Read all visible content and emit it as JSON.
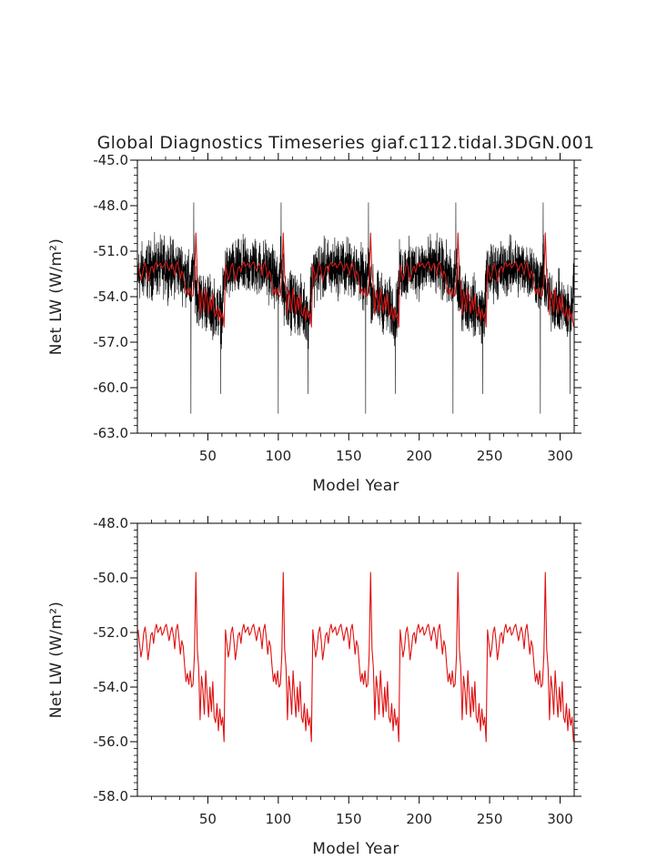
{
  "figure_title": "Global Diagnostics Timeseries giaf.c112.tidal.3DGN.001",
  "chart_data": [
    {
      "type": "line",
      "title": "Global Diagnostics Timeseries giaf.c112.tidal.3DGN.001",
      "xlabel": "Model Year",
      "ylabel": "Net LW (W/m²)",
      "xlim": [
        0,
        310
      ],
      "ylim": [
        -63.0,
        -45.0
      ],
      "x_ticks": [
        50,
        100,
        150,
        200,
        250,
        300
      ],
      "x_tick_labels": [
        "50",
        "100",
        "150",
        "200",
        "250",
        "300"
      ],
      "y_ticks": [
        -63.0,
        -60.0,
        -57.0,
        -54.0,
        -51.0,
        -48.0,
        -45.0
      ],
      "y_tick_labels": [
        "-63.0",
        "-60.0",
        "-57.0",
        "-54.0",
        "-51.0",
        "-48.0",
        "-45.0"
      ],
      "grid": false,
      "legend": "none",
      "series": [
        {
          "kind": "monthly",
          "color": "#000000",
          "cycle_length": 62,
          "cycle_starts": [
            0,
            62,
            124,
            186,
            248
          ],
          "x_start": 0,
          "x_end": 310,
          "cycle_anchors_x": [
            0,
            5,
            10,
            15,
            20,
            25,
            30,
            35,
            38,
            40,
            42,
            45,
            50,
            55,
            60,
            62
          ],
          "cycle_anchors_mean_y": [
            -52.5,
            -52.3,
            -52.2,
            -52.1,
            -52.0,
            -52.1,
            -52.2,
            -52.6,
            -53.5,
            -52.0,
            -53.8,
            -54.2,
            -54.4,
            -54.8,
            -55.2,
            -52.5
          ],
          "spread_amplitude": 1.8,
          "spikes": [
            {
              "x": 40,
              "y": -47.8
            },
            {
              "x": 38,
              "y": -61.7
            },
            {
              "x": 102,
              "y": -47.8
            },
            {
              "x": 100,
              "y": -61.7
            },
            {
              "x": 164,
              "y": -47.8
            },
            {
              "x": 162,
              "y": -61.7
            },
            {
              "x": 226,
              "y": -47.8
            },
            {
              "x": 224,
              "y": -61.7
            },
            {
              "x": 288,
              "y": -47.8
            },
            {
              "x": 286,
              "y": -61.7
            },
            {
              "x": 59,
              "y": -60.4
            },
            {
              "x": 121,
              "y": -60.4
            },
            {
              "x": 183,
              "y": -60.4
            },
            {
              "x": 245,
              "y": -60.4
            },
            {
              "x": 307,
              "y": -60.4
            }
          ]
        },
        {
          "kind": "annual_mean_overlay",
          "color": "#cc1a1a",
          "same_values_as": "lower_panel_series"
        }
      ]
    },
    {
      "type": "line",
      "title": "",
      "xlabel": "Model Year",
      "ylabel": "Net LW (W/m²)",
      "xlim": [
        0,
        310
      ],
      "ylim": [
        -58.0,
        -48.0
      ],
      "x_ticks": [
        50,
        100,
        150,
        200,
        250,
        300
      ],
      "x_tick_labels": [
        "50",
        "100",
        "150",
        "200",
        "250",
        "300"
      ],
      "y_ticks": [
        -58.0,
        -56.0,
        -54.0,
        -52.0,
        -50.0,
        -48.0
      ],
      "y_tick_labels": [
        "-58.0",
        "-56.0",
        "-54.0",
        "-52.0",
        "-50.0",
        "-48.0"
      ],
      "grid": false,
      "legend": "none",
      "series": [
        {
          "kind": "annual_mean",
          "color": "#e01010",
          "x_start": 0.5,
          "x_step": 1,
          "cycle_values": [
            -51.9,
            -52.4,
            -52.9,
            -52.6,
            -52.0,
            -51.8,
            -52.3,
            -53.0,
            -52.6,
            -52.1,
            -52.0,
            -52.4,
            -51.9,
            -51.7,
            -52.0,
            -51.9,
            -51.8,
            -52.1,
            -52.0,
            -51.8,
            -51.7,
            -52.0,
            -52.3,
            -52.0,
            -51.8,
            -52.1,
            -52.6,
            -51.9,
            -51.7,
            -52.2,
            -52.8,
            -52.3,
            -52.5,
            -53.2,
            -53.8,
            -53.5,
            -53.9,
            -53.4,
            -54.0,
            -53.9,
            -52.8,
            -49.8,
            -52.6,
            -53.3,
            -55.2,
            -53.6,
            -54.1,
            -55.0,
            -53.4,
            -54.3,
            -55.1,
            -54.0,
            -54.9,
            -53.8,
            -55.1,
            -55.3,
            -54.6,
            -55.6,
            -54.8,
            -55.4,
            -55.1,
            -56.0
          ]
        }
      ]
    }
  ]
}
